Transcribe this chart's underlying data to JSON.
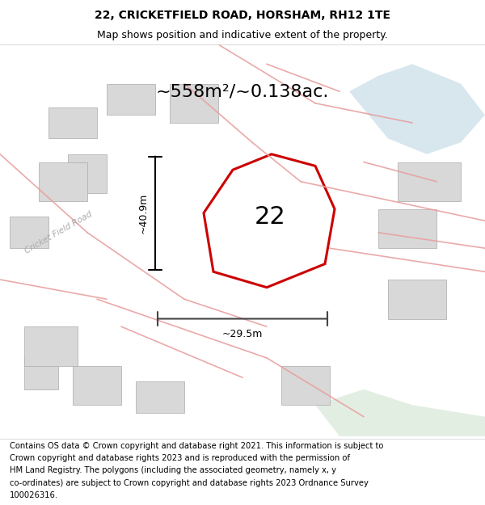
{
  "title_line1": "22, CRICKETFIELD ROAD, HORSHAM, RH12 1TE",
  "title_line2": "Map shows position and indicative extent of the property.",
  "area_text": "~558m²/~0.138ac.",
  "label_22": "22",
  "dim_height": "~40.9m",
  "dim_width": "~29.5m",
  "road_label": "Cricket Field Road",
  "map_bg": "#f8f8f5",
  "street_color": "#e8a0a0",
  "building_color": "#d8d8d8",
  "water_color": "#c8dce8",
  "green_color": "#d8e8d8",
  "title_fontsize": 10,
  "subtitle_fontsize": 9,
  "footer_fontsize": 7.2,
  "footer_lines": [
    "Contains OS data © Crown copyright and database right 2021. This information is subject to",
    "Crown copyright and database rights 2023 and is reproduced with the permission of",
    "HM Land Registry. The polygons (including the associated geometry, namely x, y",
    "co-ordinates) are subject to Crown copyright and database rights 2023 Ordnance Survey",
    "100026316."
  ]
}
